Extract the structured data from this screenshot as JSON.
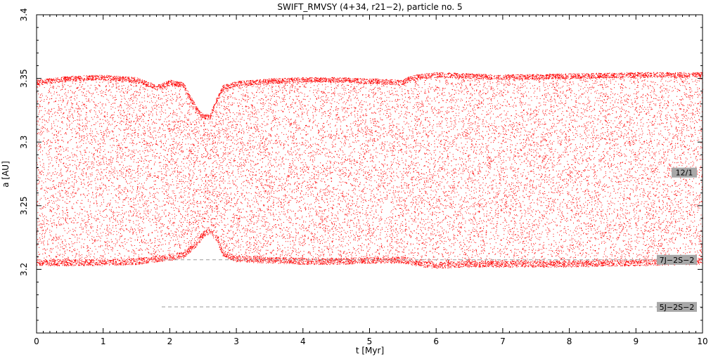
{
  "chart_data": {
    "type": "scatter",
    "title": "SWIFT_RMVSY (4+34, r21−2), particle no. 5",
    "xlabel": "t [Myr]",
    "ylabel": "a [AU]",
    "xlim": [
      0,
      10
    ],
    "ylim": [
      3.15,
      3.4
    ],
    "y_axis_top": 3.4,
    "x_ticks": [
      "0",
      "1",
      "2",
      "3",
      "4",
      "5",
      "6",
      "7",
      "8",
      "9",
      "10"
    ],
    "y_ticks": [
      "3.2",
      "3.25",
      "3.3",
      "3.35",
      "3.4"
    ],
    "grid": false,
    "series": [
      {
        "color": "#ff0000",
        "envelope": {
          "t": [
            0,
            0.5,
            1.0,
            1.5,
            1.8,
            2.0,
            2.2,
            2.4,
            2.5,
            2.6,
            2.7,
            2.8,
            3.0,
            3.5,
            4.0,
            4.5,
            5.0,
            5.5,
            5.6,
            5.8,
            6.0,
            6.5,
            7.0,
            8.0,
            9.0,
            10.0
          ],
          "upper": [
            3.349,
            3.352,
            3.353,
            3.351,
            3.345,
            3.349,
            3.347,
            3.328,
            3.322,
            3.322,
            3.335,
            3.345,
            3.348,
            3.35,
            3.351,
            3.351,
            3.35,
            3.349,
            3.352,
            3.354,
            3.355,
            3.354,
            3.353,
            3.354,
            3.355,
            3.355
          ],
          "lower": [
            3.203,
            3.203,
            3.203,
            3.204,
            3.206,
            3.207,
            3.209,
            3.218,
            3.225,
            3.228,
            3.222,
            3.21,
            3.206,
            3.205,
            3.204,
            3.204,
            3.205,
            3.205,
            3.204,
            3.202,
            3.201,
            3.202,
            3.202,
            3.202,
            3.203,
            3.204
          ]
        }
      }
    ],
    "reference_lines": [
      {
        "y": 3.2075,
        "label": "7J−2S−2",
        "style": "dashed",
        "color": "#9a9a9a"
      },
      {
        "y": 3.1705,
        "label": "5J−2S−2",
        "style": "dashed",
        "color": "#9a9a9a"
      },
      {
        "y": 3.276,
        "label": "12/1",
        "style": "tag"
      }
    ],
    "colors": {
      "points": "#ff0000",
      "label_bg": "#a8a8a8",
      "axes": "#000000"
    }
  }
}
